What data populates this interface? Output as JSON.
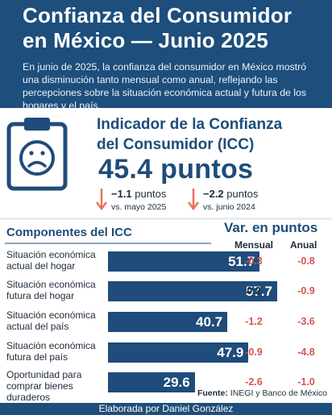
{
  "header": {
    "title_line1": "Confianza del Consumidor",
    "title_line2": "en México — Junio 2025",
    "description": "En junio de 2025, la confianza del consumidor en México mostró una disminución tanto mensual como anual, reflejando las percepciones sobre la situación económica actual y futura de los hogares y el país."
  },
  "icc": {
    "title_line1": "Indicador de la Confianza",
    "title_line2": "del Consumidor (ICC)",
    "value_text": "45.4 puntos",
    "icon": "sad-face-clipboard-icon",
    "changes": [
      {
        "value": "−1.1",
        "unit": "puntos",
        "ref": "vs. mayo 2025",
        "icon": "arrow-down-icon"
      },
      {
        "value": "−2.2",
        "unit": "puntos",
        "ref": "vs. junio 2024",
        "icon": "arrow-down-icon"
      }
    ]
  },
  "components": {
    "title": "Componentes del ICC",
    "var_title": "Var. en puntos",
    "col_mensual": "Mensual",
    "col_anual": "Anual"
  },
  "chart_data": {
    "type": "bar",
    "orientation": "horizontal",
    "categories": [
      "Situación económica actual del hogar",
      "Situación económica futura del hogar",
      "Situación económica actual del país",
      "Situación económica futura del país",
      "Oportunidad para comprar bienes duraderos"
    ],
    "category_lines": [
      [
        "Situación económica",
        "actual del hogar"
      ],
      [
        "Situación económica",
        "futura del hogar"
      ],
      [
        "Situación económica",
        "actual del país"
      ],
      [
        "Situación económica",
        "futura del país"
      ],
      [
        "Oportunidad para",
        "comprar bienes",
        "duraderos"
      ]
    ],
    "values": [
      51.7,
      57.7,
      40.7,
      47.9,
      29.6
    ],
    "value_labels": [
      "51.7",
      "57.7",
      "40.7",
      "47.9",
      "29.6"
    ],
    "mensual": [
      "-0.3",
      "0.2",
      "-1.2",
      "-0.9",
      "-2.6"
    ],
    "anual": [
      "-0.8",
      "-0.9",
      "-3.6",
      "-4.8",
      "-1.0"
    ],
    "bar_color": "#1f4c7a",
    "negative_color": "#d9534f"
  },
  "source": {
    "label": "Fuente:",
    "text": " INEGI y Banco de México"
  },
  "footer": {
    "credit": "Elaborada por Daniel González"
  },
  "colors": {
    "primary": "#1d4e7c",
    "accent_negative": "#d9534f"
  }
}
